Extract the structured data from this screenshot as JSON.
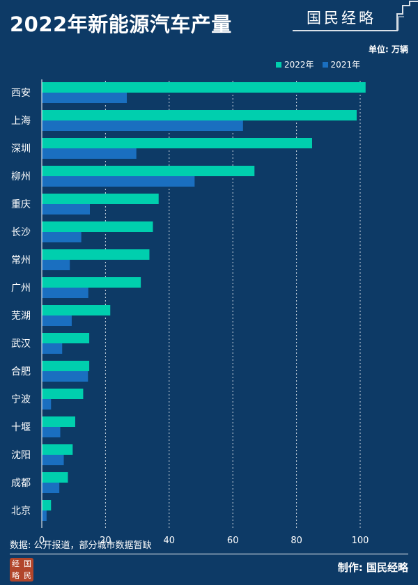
{
  "header": {
    "title": "2022年新能源汽车产量",
    "brand": "国民经略",
    "unit": "单位: 万辆"
  },
  "legend": {
    "items": [
      {
        "label": "2022年",
        "color": "#00cfae"
      },
      {
        "label": "2021年",
        "color": "#1a6fc0"
      }
    ]
  },
  "chart_data": {
    "type": "bar",
    "orientation": "horizontal",
    "categories": [
      "西安",
      "上海",
      "深圳",
      "柳州",
      "重庆",
      "长沙",
      "常州",
      "广州",
      "芜湖",
      "武汉",
      "合肥",
      "宁波",
      "十堰",
      "沈阳",
      "成都",
      "北京"
    ],
    "series": [
      {
        "name": "2022年",
        "values": [
          101.7,
          98.9,
          84.9,
          66.8,
          36.7,
          34.9,
          33.8,
          31.1,
          21.5,
          14.9,
          14.9,
          13.0,
          10.5,
          9.7,
          8.2,
          2.9
        ]
      },
      {
        "name": "2021年",
        "values": [
          26.7,
          63.2,
          29.7,
          48.0,
          15.1,
          12.4,
          8.8,
          14.6,
          9.4,
          6.4,
          14.5,
          2.9,
          5.8,
          6.9,
          5.5,
          1.5
        ]
      }
    ],
    "xlim": [
      0,
      110
    ],
    "xticks": [
      0,
      20,
      40,
      60,
      80,
      100
    ],
    "grid": true
  },
  "footer": {
    "source": "数据: 公开报道，部分城市数据暂缺",
    "maker": "制作: 国民经略",
    "logo_chars": [
      "经",
      "国",
      "略",
      "民"
    ]
  },
  "colors": {
    "background": "#0d3a66",
    "series_2022": "#00cfae",
    "series_2021": "#1a6fc0"
  }
}
